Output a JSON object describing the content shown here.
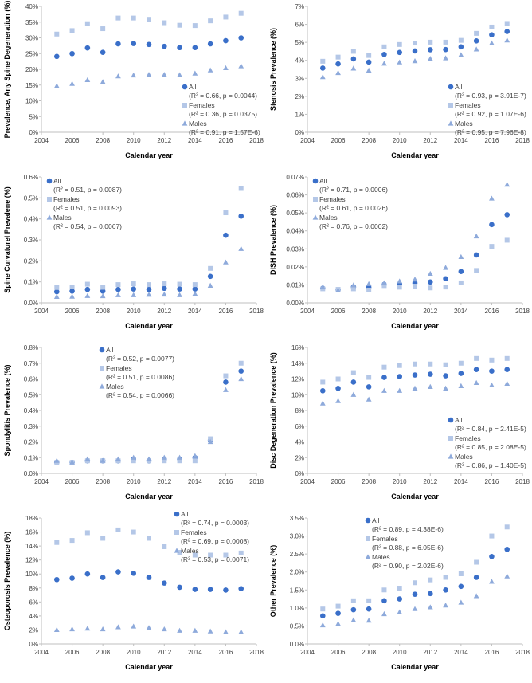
{
  "colors": {
    "All": "#3a6fc9",
    "Females": "#b4c7e7",
    "Males": "#8eaadb"
  },
  "chart_data": [
    {
      "type": "scatter",
      "ylabel": "Prevalence, Any Spine Degeneration (%)",
      "xlabel": "Calendar year",
      "xlim": [
        2004,
        2018
      ],
      "xticks": [
        2004,
        2006,
        2008,
        2010,
        2012,
        2014,
        2016,
        2018
      ],
      "ylim": [
        0,
        40
      ],
      "yticks": [
        "0%",
        "5%",
        "10%",
        "15%",
        "20%",
        "25%",
        "30%",
        "35%",
        "40%"
      ],
      "ystep": 5,
      "legend_position": "bottom-right",
      "x": [
        2005,
        2006,
        2007,
        2008,
        2009,
        2010,
        2011,
        2012,
        2013,
        2014,
        2015,
        2016,
        2017
      ],
      "series": [
        {
          "name": "All",
          "marker": "circle",
          "stats": "(R² = 0.66, p = 0.0044)",
          "values": [
            24.1,
            25.0,
            26.8,
            25.4,
            28.1,
            28.2,
            27.9,
            27.3,
            26.9,
            26.9,
            28.1,
            29.1,
            30.0
          ]
        },
        {
          "name": "Females",
          "marker": "square",
          "stats": "(R² = 0.36, p = 0.0375)",
          "values": [
            31.2,
            32.3,
            34.5,
            32.9,
            36.3,
            36.3,
            35.9,
            34.8,
            34.0,
            33.9,
            35.4,
            36.6,
            37.8
          ]
        },
        {
          "name": "Males",
          "marker": "triangle",
          "stats": "(R² = 0.91, p = 1.57E-6)",
          "values": [
            14.7,
            15.4,
            16.6,
            16.0,
            17.8,
            18.1,
            18.3,
            18.3,
            18.2,
            18.7,
            19.7,
            20.4,
            21.0
          ]
        }
      ]
    },
    {
      "type": "scatter",
      "ylabel": "Stenosis Prevalence (%)",
      "xlabel": "Calendar year",
      "xlim": [
        2004,
        2018
      ],
      "xticks": [
        2004,
        2006,
        2008,
        2010,
        2012,
        2014,
        2016,
        2018
      ],
      "ylim": [
        0,
        7
      ],
      "yticks": [
        "0%",
        "1%",
        "2%",
        "3%",
        "4%",
        "5%",
        "6%",
        "7%"
      ],
      "ystep": 1,
      "legend_position": "bottom-right",
      "x": [
        2005,
        2006,
        2007,
        2008,
        2009,
        2010,
        2011,
        2012,
        2013,
        2014,
        2015,
        2016,
        2017
      ],
      "series": [
        {
          "name": "All",
          "marker": "circle",
          "stats": "(R² = 0.93, p = 3.91E-7)",
          "values": [
            3.57,
            3.8,
            4.08,
            3.9,
            4.33,
            4.44,
            4.52,
            4.59,
            4.6,
            4.75,
            5.08,
            5.42,
            5.6
          ]
        },
        {
          "name": "Females",
          "marker": "square",
          "stats": "(R² = 0.92, p = 1.07E-6)",
          "values": [
            3.95,
            4.18,
            4.5,
            4.27,
            4.75,
            4.88,
            4.96,
            5.01,
            5.01,
            5.11,
            5.5,
            5.85,
            6.05
          ]
        },
        {
          "name": "Males",
          "marker": "triangle",
          "stats": "(R² = 0.95, p = 7.96E-8)",
          "values": [
            3.07,
            3.3,
            3.55,
            3.44,
            3.82,
            3.89,
            3.96,
            4.09,
            4.12,
            4.3,
            4.61,
            4.95,
            5.11
          ]
        }
      ]
    },
    {
      "type": "scatter",
      "ylabel": "Spine Curvaturel Prevalene (%)",
      "xlabel": "Calendar year",
      "xlim": [
        2004,
        2018
      ],
      "xticks": [
        2004,
        2006,
        2008,
        2010,
        2012,
        2014,
        2016,
        2018
      ],
      "ylim": [
        0,
        0.6
      ],
      "yticks": [
        "0.0%",
        "0.1%",
        "0.2%",
        "0.3%",
        "0.4%",
        "0.5%",
        "0.6%"
      ],
      "ystep": 0.1,
      "legend_position": "top-left",
      "x": [
        2005,
        2006,
        2007,
        2008,
        2009,
        2010,
        2011,
        2012,
        2013,
        2014,
        2015,
        2016,
        2017
      ],
      "series": [
        {
          "name": "All",
          "marker": "circle",
          "stats": "(R² = 0.51, p = 0.0087)",
          "values": [
            0.053,
            0.056,
            0.064,
            0.056,
            0.064,
            0.066,
            0.064,
            0.069,
            0.066,
            0.066,
            0.126,
            0.322,
            0.413
          ]
        },
        {
          "name": "Females",
          "marker": "square",
          "stats": "(R² = 0.51, p = 0.0093)",
          "values": [
            0.073,
            0.076,
            0.089,
            0.074,
            0.087,
            0.091,
            0.087,
            0.091,
            0.089,
            0.087,
            0.164,
            0.429,
            0.545
          ]
        },
        {
          "name": "Males",
          "marker": "triangle",
          "stats": "(R² = 0.54, p = 0.0067)",
          "values": [
            0.029,
            0.03,
            0.033,
            0.032,
            0.037,
            0.037,
            0.039,
            0.04,
            0.037,
            0.043,
            0.082,
            0.193,
            0.257
          ]
        }
      ]
    },
    {
      "type": "scatter",
      "ylabel": "DISH Prevalence (%)",
      "xlabel": "Calendar year",
      "xlim": [
        2004,
        2018
      ],
      "xticks": [
        2004,
        2006,
        2008,
        2010,
        2012,
        2014,
        2016,
        2018
      ],
      "ylim": [
        0,
        0.07
      ],
      "yticks": [
        "0.00%",
        "0.01%",
        "0.02%",
        "0.03%",
        "0.04%",
        "0.05%",
        "0.06%",
        "0.07%"
      ],
      "ystep": 0.01,
      "legend_position": "top-left",
      "x": [
        2005,
        2006,
        2007,
        2008,
        2009,
        2010,
        2011,
        2012,
        2013,
        2014,
        2015,
        2016,
        2017
      ],
      "series": [
        {
          "name": "All",
          "marker": "circle",
          "stats": "(R² = 0.71, p = 0.0006)",
          "values": [
            0.0081,
            0.0072,
            0.0088,
            0.0087,
            0.0102,
            0.0104,
            0.011,
            0.0116,
            0.0134,
            0.0174,
            0.0266,
            0.0435,
            0.049
          ]
        },
        {
          "name": "Females",
          "marker": "square",
          "stats": "(R² = 0.61, p = 0.0026)",
          "values": [
            0.0078,
            0.0075,
            0.0078,
            0.0071,
            0.0096,
            0.0087,
            0.0093,
            0.0083,
            0.0088,
            0.0111,
            0.018,
            0.0314,
            0.0348
          ]
        },
        {
          "name": "Males",
          "marker": "triangle",
          "stats": "(R² = 0.76, p = 0.0002)",
          "values": [
            0.0087,
            0.0069,
            0.0098,
            0.0105,
            0.011,
            0.012,
            0.013,
            0.0162,
            0.0195,
            0.0255,
            0.037,
            0.058,
            0.0657
          ]
        }
      ]
    },
    {
      "type": "scatter",
      "ylabel": "Spondylitis Prevalence (%)",
      "xlabel": "Calendar year",
      "xlim": [
        2004,
        2018
      ],
      "xticks": [
        2004,
        2006,
        2008,
        2010,
        2012,
        2014,
        2016,
        2018
      ],
      "ylim": [
        0,
        0.8
      ],
      "yticks": [
        "0.0%",
        "0.1%",
        "0.2%",
        "0.3%",
        "0.4%",
        "0.5%",
        "0.6%",
        "0.7%",
        "0.8%"
      ],
      "ystep": 0.1,
      "legend_position": "top-center",
      "x": [
        2005,
        2006,
        2007,
        2008,
        2009,
        2010,
        2011,
        2012,
        2013,
        2014,
        2015,
        2016,
        2017
      ],
      "series": [
        {
          "name": "All",
          "marker": "circle",
          "stats": "(R² = 0.52, p = 0.0077)",
          "values": [
            0.07,
            0.07,
            0.08,
            0.08,
            0.08,
            0.09,
            0.08,
            0.09,
            0.09,
            0.1,
            0.21,
            0.58,
            0.65
          ]
        },
        {
          "name": "Females",
          "marker": "square",
          "stats": "(R² = 0.51, p = 0.0086)",
          "values": [
            0.07,
            0.07,
            0.08,
            0.08,
            0.08,
            0.08,
            0.08,
            0.08,
            0.08,
            0.08,
            0.22,
            0.62,
            0.7
          ]
        },
        {
          "name": "Males",
          "marker": "triangle",
          "stats": "(R² = 0.54, p = 0.0066)",
          "values": [
            0.08,
            0.07,
            0.09,
            0.08,
            0.09,
            0.1,
            0.09,
            0.1,
            0.1,
            0.11,
            0.2,
            0.53,
            0.6
          ]
        }
      ]
    },
    {
      "type": "scatter",
      "ylabel": "Disc Degeneration Prevalence (%)",
      "xlabel": "Calendar year",
      "xlim": [
        2004,
        2018
      ],
      "xticks": [
        2004,
        2006,
        2008,
        2010,
        2012,
        2014,
        2016,
        2018
      ],
      "ylim": [
        0,
        16
      ],
      "yticks": [
        "0%",
        "2%",
        "4%",
        "6%",
        "8%",
        "10%",
        "12%",
        "14%",
        "16%"
      ],
      "ystep": 2,
      "legend_position": "middle-right",
      "x": [
        2005,
        2006,
        2007,
        2008,
        2009,
        2010,
        2011,
        2012,
        2013,
        2014,
        2015,
        2016,
        2017
      ],
      "series": [
        {
          "name": "All",
          "marker": "circle",
          "stats": "(R² = 0.84, p = 2.41E-5)",
          "values": [
            10.5,
            10.8,
            11.6,
            11.0,
            12.2,
            12.3,
            12.5,
            12.6,
            12.4,
            12.7,
            13.2,
            13.0,
            13.2
          ]
        },
        {
          "name": "Females",
          "marker": "square",
          "stats": "(R² = 0.85, p = 2.08E-5)",
          "values": [
            11.6,
            12.0,
            12.8,
            12.2,
            13.5,
            13.7,
            13.9,
            13.9,
            13.8,
            14.0,
            14.6,
            14.4,
            14.6
          ]
        },
        {
          "name": "Males",
          "marker": "triangle",
          "stats": "(R² = 0.86, p = 1.40E-5)",
          "values": [
            8.9,
            9.2,
            10.0,
            9.4,
            10.5,
            10.5,
            10.8,
            11.0,
            10.8,
            11.1,
            11.5,
            11.2,
            11.4
          ]
        }
      ]
    },
    {
      "type": "scatter",
      "ylabel": "Osteoporosis Prevalence (%)",
      "xlabel": "Calendar year",
      "xlim": [
        2004,
        2018
      ],
      "xticks": [
        2004,
        2006,
        2008,
        2010,
        2012,
        2014,
        2016,
        2018
      ],
      "ylim": [
        0,
        18
      ],
      "yticks": [
        "0%",
        "2%",
        "4%",
        "6%",
        "8%",
        "10%",
        "12%",
        "14%",
        "16%",
        "18%"
      ],
      "ystep": 2,
      "legend_position": "top-right-outside",
      "x": [
        2005,
        2006,
        2007,
        2008,
        2009,
        2010,
        2011,
        2012,
        2013,
        2014,
        2015,
        2016,
        2017
      ],
      "series": [
        {
          "name": "All",
          "marker": "circle",
          "stats": "(R² = 0.74, p = 0.0003)",
          "values": [
            9.2,
            9.4,
            10.0,
            9.5,
            10.3,
            10.1,
            9.5,
            8.7,
            8.1,
            7.8,
            7.8,
            7.7,
            7.9
          ]
        },
        {
          "name": "Females",
          "marker": "square",
          "stats": "(R² = 0.69, p = 0.0008)",
          "values": [
            14.5,
            14.8,
            15.9,
            15.1,
            16.3,
            16.0,
            15.1,
            13.9,
            13.1,
            12.7,
            12.7,
            12.7,
            13.0
          ]
        },
        {
          "name": "Males",
          "marker": "triangle",
          "stats": "(R² = 0.53, p = 0.0071)",
          "values": [
            2.0,
            2.1,
            2.2,
            2.1,
            2.4,
            2.5,
            2.3,
            2.1,
            1.9,
            1.9,
            1.8,
            1.7,
            1.7
          ]
        }
      ]
    },
    {
      "type": "scatter",
      "ylabel": "Other Prevalence (%)",
      "xlabel": "Calendar year",
      "xlim": [
        2004,
        2018
      ],
      "xticks": [
        2004,
        2006,
        2008,
        2010,
        2012,
        2014,
        2016,
        2018
      ],
      "ylim": [
        0,
        3.5
      ],
      "yticks": [
        "0.0%",
        "0.5%",
        "1.0%",
        "1.5%",
        "2.0%",
        "2.5%",
        "3.0%",
        "3.5%"
      ],
      "ystep": 0.5,
      "legend_position": "top-center",
      "x": [
        2005,
        2006,
        2007,
        2008,
        2009,
        2010,
        2011,
        2012,
        2013,
        2014,
        2015,
        2016,
        2017
      ],
      "series": [
        {
          "name": "All",
          "marker": "circle",
          "stats": "(R² = 0.89, p = 4.38E-6)",
          "values": [
            0.78,
            0.85,
            0.95,
            0.97,
            1.2,
            1.25,
            1.38,
            1.4,
            1.5,
            1.6,
            1.85,
            2.43,
            2.63
          ]
        },
        {
          "name": "Females",
          "marker": "square",
          "stats": "(R² = 0.88, p = 6.05E-6)",
          "values": [
            0.97,
            1.05,
            1.2,
            1.2,
            1.5,
            1.55,
            1.7,
            1.78,
            1.85,
            1.95,
            2.27,
            3.0,
            3.25
          ]
        },
        {
          "name": "Males",
          "marker": "triangle",
          "stats": "(R² = 0.90, p = 2.02E-6)",
          "values": [
            0.52,
            0.56,
            0.66,
            0.65,
            0.83,
            0.88,
            0.97,
            1.02,
            1.07,
            1.15,
            1.33,
            1.73,
            1.88
          ]
        }
      ]
    }
  ]
}
